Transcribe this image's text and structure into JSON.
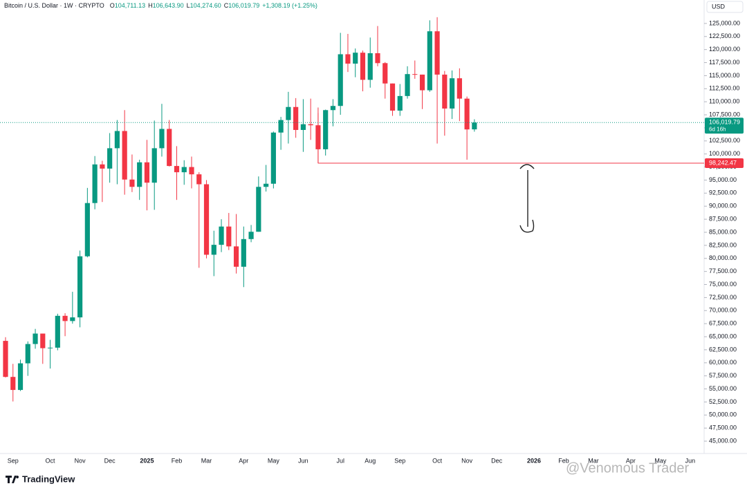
{
  "chart_data": {
    "type": "candlestick",
    "header": {
      "symbol": "Bitcoin / U.S. Dollar · 1W · CRYPTO",
      "ohlc": [
        {
          "key": "O",
          "text": "104,711.13"
        },
        {
          "key": "H",
          "text": "106,643.90"
        },
        {
          "key": "L",
          "text": "104,274.60"
        },
        {
          "key": "C",
          "text": "106,019.79"
        }
      ],
      "change": "+1,308.19 (+1.25%)"
    },
    "currency": "USD",
    "categories": [
      null,
      "Sep",
      null,
      null,
      null,
      null,
      "Oct",
      null,
      null,
      null,
      "Nov",
      null,
      null,
      null,
      "Dec",
      null,
      null,
      null,
      null,
      "2025",
      null,
      null,
      null,
      "Feb",
      null,
      null,
      null,
      "Mar",
      null,
      null,
      null,
      null,
      "Apr",
      null,
      null,
      null,
      "May",
      null,
      null,
      null,
      "Jun",
      null,
      null,
      null,
      null,
      "Jul",
      null,
      null,
      null,
      "Aug",
      null,
      null,
      null,
      "Sep",
      null,
      null,
      null,
      null,
      "Oct",
      null,
      null,
      null,
      "Nov",
      null,
      null,
      null,
      "Dec",
      null,
      null,
      null,
      null,
      "2026",
      null,
      null,
      null,
      "Feb",
      null,
      null,
      null,
      "Mar",
      null,
      null,
      null,
      null,
      "Apr",
      null,
      null,
      null,
      "May",
      null,
      null,
      null,
      "Jun"
    ],
    "open": [
      64200,
      57300,
      54800,
      59900,
      63600,
      65600,
      62800,
      62900,
      69000,
      68000,
      68700,
      80400,
      90600,
      98000,
      97200,
      101100,
      104400,
      95100,
      93700,
      98400,
      94500,
      101100,
      104800,
      97700,
      96500,
      97500,
      96100,
      94200,
      80700,
      82600,
      86100,
      82300,
      78400,
      83700,
      85100,
      93700,
      94300,
      104100,
      106500,
      109000,
      104600,
      105700,
      105500,
      100900,
      108400,
      109200,
      119100,
      117300,
      119400,
      114200,
      119300,
      117400,
      113500,
      108300,
      111100,
      115300,
      115200,
      112200,
      123500,
      115200,
      108700,
      114500,
      110600,
      104711.13,
      null,
      null,
      null,
      null,
      null,
      null,
      null,
      null,
      null,
      null,
      null,
      null,
      null,
      null,
      null,
      null,
      null,
      null,
      null,
      null,
      null,
      null,
      null,
      null,
      null,
      null,
      null,
      null,
      null
    ],
    "high": [
      64900,
      59800,
      60600,
      64100,
      66500,
      65600,
      64400,
      69400,
      69500,
      73600,
      81500,
      93500,
      99600,
      98700,
      104000,
      106500,
      108400,
      99900,
      98900,
      102700,
      106400,
      109600,
      106500,
      101500,
      98800,
      99500,
      96500,
      95000,
      85300,
      87500,
      88700,
      88500,
      86100,
      86400,
      95700,
      97900,
      104300,
      107100,
      111900,
      110700,
      110500,
      110600,
      108900,
      108500,
      110500,
      123200,
      123000,
      120200,
      119800,
      122300,
      124500,
      117600,
      113500,
      113400,
      116800,
      117900,
      115200,
      125600,
      126200,
      115900,
      116000,
      116400,
      111000,
      106643.9,
      null,
      null,
      null,
      null,
      null,
      null,
      null,
      null,
      null,
      null,
      null,
      null,
      null,
      null,
      null,
      null,
      null,
      null,
      null,
      null,
      null,
      null,
      null,
      null,
      null,
      null,
      null,
      null,
      null
    ],
    "low": [
      57200,
      52600,
      54600,
      57500,
      62700,
      59800,
      58900,
      62400,
      65100,
      67500,
      66800,
      80200,
      89400,
      90800,
      94500,
      94200,
      92200,
      92700,
      91200,
      89200,
      89300,
      99500,
      97600,
      91200,
      94100,
      93400,
      78200,
      80000,
      76600,
      81200,
      81600,
      77100,
      74500,
      83100,
      85100,
      92800,
      93400,
      100800,
      102000,
      103100,
      100400,
      102700,
      98200,
      99700,
      105300,
      107500,
      115700,
      114700,
      112000,
      112700,
      116800,
      110600,
      107300,
      107300,
      110600,
      114400,
      108600,
      111900,
      102000,
      103500,
      106700,
      106300,
      98900,
      104274.6,
      null,
      null,
      null,
      null,
      null,
      null,
      null,
      null,
      null,
      null,
      null,
      null,
      null,
      null,
      null,
      null,
      null,
      null,
      null,
      null,
      null,
      null,
      null,
      null,
      null,
      null,
      null,
      null,
      null
    ],
    "close": [
      57300,
      54800,
      59900,
      63600,
      65600,
      62800,
      62900,
      69000,
      68000,
      68700,
      80400,
      90600,
      98000,
      97200,
      101100,
      104400,
      95100,
      93700,
      98400,
      94500,
      101100,
      104800,
      97700,
      96500,
      97500,
      96100,
      94200,
      80700,
      82600,
      86100,
      82300,
      78400,
      83700,
      85100,
      93700,
      94300,
      104100,
      106500,
      109000,
      104600,
      105700,
      105500,
      100900,
      108400,
      109200,
      119100,
      117300,
      119400,
      114200,
      119300,
      117400,
      113500,
      108300,
      111100,
      115300,
      115200,
      112200,
      123500,
      115200,
      108700,
      114500,
      110600,
      104700,
      106019.79,
      null,
      null,
      null,
      null,
      null,
      null,
      null,
      null,
      null,
      null,
      null,
      null,
      null,
      null,
      null,
      null,
      null,
      null,
      null,
      null,
      null,
      null,
      null,
      null,
      null,
      null,
      null,
      null,
      null
    ],
    "up_color": "#089981",
    "down_color": "#f23645",
    "ylim": [
      42760,
      129490
    ],
    "yticks": [
      {
        "value": 45000,
        "label": "45,000.00"
      },
      {
        "value": 47500,
        "label": "47,500.00"
      },
      {
        "value": 50000,
        "label": "50,000.00"
      },
      {
        "value": 52500,
        "label": "52,500.00"
      },
      {
        "value": 55000,
        "label": "55,000.00"
      },
      {
        "value": 57500,
        "label": "57,500.00"
      },
      {
        "value": 60000,
        "label": "60,000.00"
      },
      {
        "value": 62500,
        "label": "62,500.00"
      },
      {
        "value": 65000,
        "label": "65,000.00"
      },
      {
        "value": 67500,
        "label": "67,500.00"
      },
      {
        "value": 70000,
        "label": "70,000.00"
      },
      {
        "value": 72500,
        "label": "72,500.00"
      },
      {
        "value": 75000,
        "label": "75,000.00"
      },
      {
        "value": 77500,
        "label": "77,500.00"
      },
      {
        "value": 80000,
        "label": "80,000.00"
      },
      {
        "value": 82500,
        "label": "82,500.00"
      },
      {
        "value": 85000,
        "label": "85,000.00"
      },
      {
        "value": 87500,
        "label": "87,500.00"
      },
      {
        "value": 90000,
        "label": "90,000.00"
      },
      {
        "value": 92500,
        "label": "92,500.00"
      },
      {
        "value": 95000,
        "label": "95,000.00"
      },
      {
        "value": 97500,
        "label": "97,500.00"
      },
      {
        "value": 100000,
        "label": "100,000.00"
      },
      {
        "value": 102500,
        "label": "102,500.00"
      },
      {
        "value": 105000,
        "label": "105,000.00"
      },
      {
        "value": 107500,
        "label": "107,500.00"
      },
      {
        "value": 110000,
        "label": "110,000.00"
      },
      {
        "value": 112500,
        "label": "112,500.00"
      },
      {
        "value": 115000,
        "label": "115,000.00"
      },
      {
        "value": 117500,
        "label": "117,500.00"
      },
      {
        "value": 120000,
        "label": "120,000.00"
      },
      {
        "value": 122500,
        "label": "122,500.00"
      },
      {
        "value": 125000,
        "label": "125,000.00"
      }
    ],
    "last_price": {
      "value": 106019.79,
      "label": "106,019.79",
      "countdown": "6d 16h"
    },
    "level": {
      "value": 98242.47,
      "label": "98,242.47",
      "color": "#f23645"
    },
    "brand": "TradingView",
    "watermark": "@Venomous Trader"
  }
}
